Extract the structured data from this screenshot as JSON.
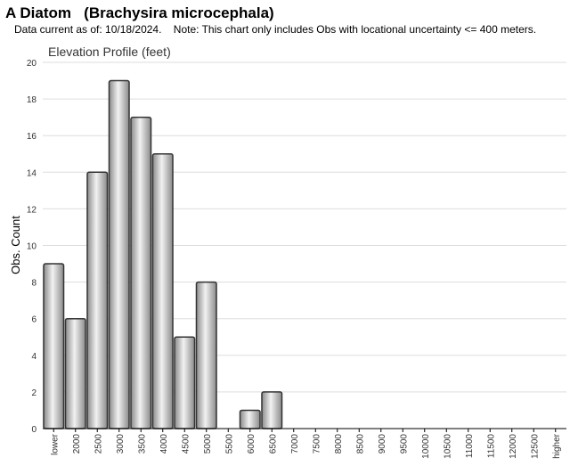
{
  "header": {
    "title": "A Diatom   (Brachysira microcephala)",
    "subtitle": "Data current as of: 10/18/2024.    Note: This chart only includes Obs with locational uncertainty <= 400 meters."
  },
  "chart_data": {
    "type": "bar",
    "title": "Elevation Profile (feet)",
    "xlabel": "",
    "ylabel": "Obs. Count",
    "ylim": [
      0,
      20
    ],
    "yticks": [
      0,
      2,
      4,
      6,
      8,
      10,
      12,
      14,
      16,
      18,
      20
    ],
    "grid": true,
    "categories": [
      "lower",
      "2000",
      "2500",
      "3000",
      "3500",
      "4000",
      "4500",
      "5000",
      "5500",
      "6000",
      "6500",
      "7000",
      "7500",
      "8000",
      "8500",
      "9000",
      "9500",
      "10000",
      "10500",
      "11000",
      "11500",
      "12000",
      "12500",
      "higher"
    ],
    "values": [
      9,
      6,
      14,
      19,
      17,
      15,
      5,
      8,
      0,
      1,
      2,
      0,
      0,
      0,
      0,
      0,
      0,
      0,
      0,
      0,
      0,
      0,
      0,
      0
    ]
  },
  "colors": {
    "bar_light": "#f2f2f2",
    "bar_mid": "#b3b3b3",
    "bar_dark": "#8a8a8a",
    "bar_stroke": "#333333",
    "grid": "#dddddd",
    "axis": "#000000"
  }
}
